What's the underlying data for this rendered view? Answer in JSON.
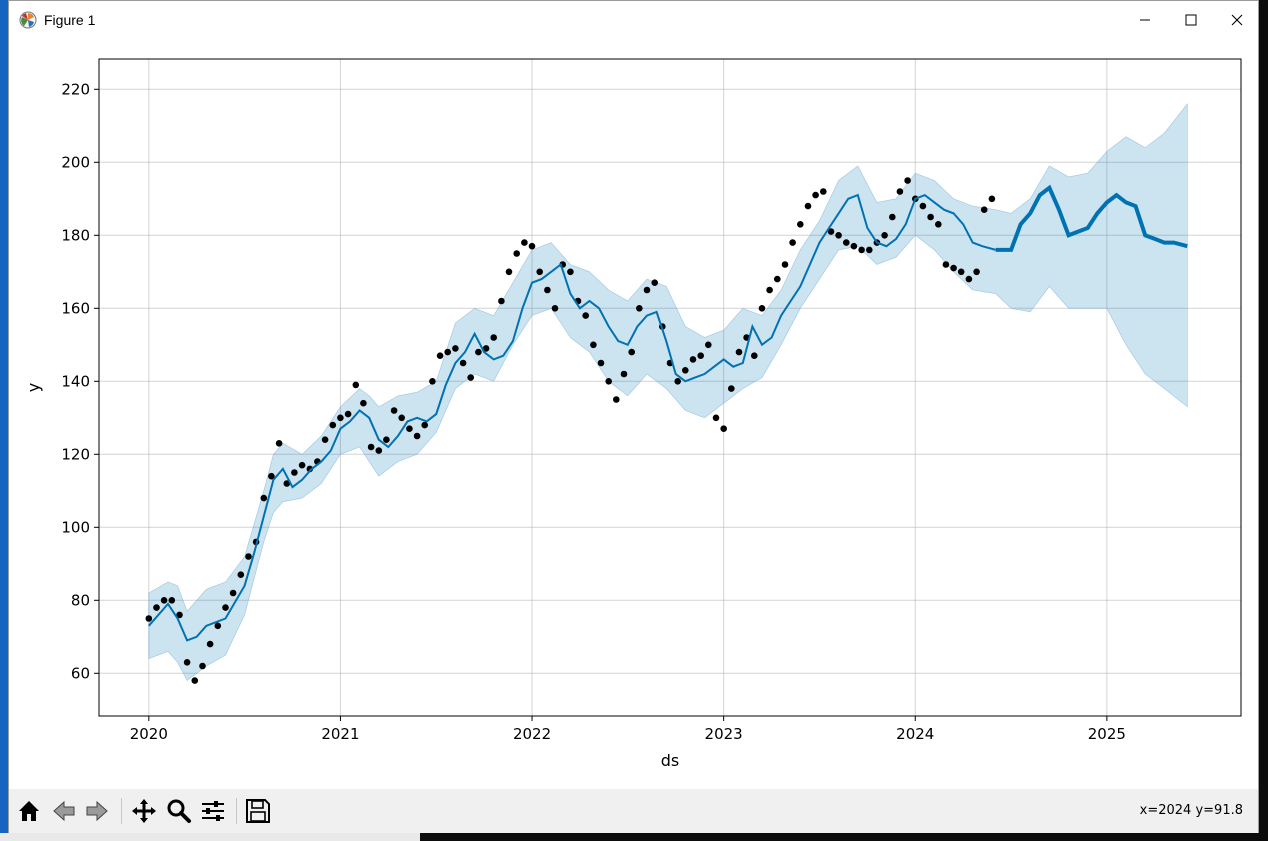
{
  "window": {
    "title": "Figure 1",
    "app_icon": "matplotlib-icon"
  },
  "toolbar": {
    "buttons": [
      {
        "icon": "home-icon",
        "name": "home-button"
      },
      {
        "icon": "back-arrow-icon",
        "name": "back-button"
      },
      {
        "icon": "forward-arrow-icon",
        "name": "forward-button"
      },
      {
        "icon": "pan-move-icon",
        "name": "pan-button"
      },
      {
        "icon": "zoom-magnifier-icon",
        "name": "zoom-button"
      },
      {
        "icon": "sliders-icon",
        "name": "configure-subplots-button"
      },
      {
        "icon": "save-floppy-icon",
        "name": "save-button"
      }
    ],
    "coords_text": "x=2024 y=91.8"
  },
  "chart_data": {
    "type": "line",
    "title": "",
    "xlabel": "ds",
    "ylabel": "y",
    "xlim": [
      2019.74,
      2025.7
    ],
    "ylim": [
      48.3,
      228.3
    ],
    "x_ticks": [
      "2020",
      "2021",
      "2022",
      "2023",
      "2024",
      "2025"
    ],
    "x_tick_values": [
      2020,
      2021,
      2022,
      2023,
      2024,
      2025
    ],
    "y_ticks": [
      "60",
      "80",
      "100",
      "120",
      "140",
      "160",
      "180",
      "200",
      "220"
    ],
    "y_tick_values": [
      60,
      80,
      100,
      120,
      140,
      160,
      180,
      200,
      220
    ],
    "grid": true,
    "colors": {
      "observed": "#000000",
      "forecast": "#0072b2",
      "interval": "#0072b2"
    },
    "history_end": 2024.42,
    "forecast_end": 2025.42,
    "series": [
      {
        "kind": "observed-points",
        "x": [
          2020.0,
          2020.04,
          2020.08,
          2020.12,
          2020.16,
          2020.2,
          2020.24,
          2020.28,
          2020.32,
          2020.36,
          2020.4,
          2020.44,
          2020.48,
          2020.52,
          2020.56,
          2020.6,
          2020.64,
          2020.68,
          2020.72,
          2020.76,
          2020.8,
          2020.84,
          2020.88,
          2020.92,
          2020.96,
          2021.0,
          2021.04,
          2021.08,
          2021.12,
          2021.16,
          2021.2,
          2021.24,
          2021.28,
          2021.32,
          2021.36,
          2021.4,
          2021.44,
          2021.48,
          2021.52,
          2021.56,
          2021.6,
          2021.64,
          2021.68,
          2021.72,
          2021.76,
          2021.8,
          2021.84,
          2021.88,
          2021.92,
          2021.96,
          2022.0,
          2022.04,
          2022.08,
          2022.12,
          2022.16,
          2022.2,
          2022.24,
          2022.28,
          2022.32,
          2022.36,
          2022.4,
          2022.44,
          2022.48,
          2022.52,
          2022.56,
          2022.6,
          2022.64,
          2022.68,
          2022.72,
          2022.76,
          2022.8,
          2022.84,
          2022.88,
          2022.92,
          2022.96,
          2023.0,
          2023.04,
          2023.08,
          2023.12,
          2023.16,
          2023.2,
          2023.24,
          2023.28,
          2023.32,
          2023.36,
          2023.4,
          2023.44,
          2023.48,
          2023.52,
          2023.56,
          2023.6,
          2023.64,
          2023.68,
          2023.72,
          2023.76,
          2023.8,
          2023.84,
          2023.88,
          2023.92,
          2023.96,
          2024.0,
          2024.04,
          2024.08,
          2024.12,
          2024.16,
          2024.2,
          2024.24,
          2024.28,
          2024.32,
          2024.36,
          2024.4
        ],
        "y": [
          75,
          78,
          80,
          80,
          76,
          63,
          58,
          62,
          68,
          73,
          78,
          82,
          87,
          92,
          96,
          108,
          114,
          123,
          112,
          115,
          117,
          116,
          118,
          124,
          128,
          130,
          131,
          139,
          134,
          122,
          121,
          124,
          132,
          130,
          127,
          125,
          128,
          140,
          147,
          148,
          149,
          145,
          141,
          148,
          149,
          152,
          162,
          170,
          175,
          178,
          177,
          170,
          165,
          160,
          172,
          170,
          162,
          158,
          150,
          145,
          140,
          135,
          142,
          148,
          160,
          165,
          167,
          155,
          145,
          140,
          143,
          146,
          147,
          150,
          130,
          127,
          138,
          148,
          152,
          147,
          160,
          165,
          168,
          172,
          178,
          183,
          188,
          191,
          192,
          181,
          180,
          178,
          177,
          176,
          176,
          178,
          180,
          185,
          192,
          195,
          190,
          188,
          185,
          183,
          172,
          171,
          170,
          168,
          170,
          187,
          190
        ]
      },
      {
        "kind": "forecast-line",
        "x": [
          2020.0,
          2020.05,
          2020.1,
          2020.15,
          2020.2,
          2020.25,
          2020.3,
          2020.4,
          2020.5,
          2020.55,
          2020.6,
          2020.65,
          2020.7,
          2020.75,
          2020.8,
          2020.85,
          2020.9,
          2020.95,
          2021.0,
          2021.05,
          2021.1,
          2021.15,
          2021.2,
          2021.25,
          2021.3,
          2021.35,
          2021.4,
          2021.45,
          2021.5,
          2021.55,
          2021.6,
          2021.65,
          2021.7,
          2021.75,
          2021.8,
          2021.85,
          2021.9,
          2021.95,
          2022.0,
          2022.05,
          2022.1,
          2022.15,
          2022.2,
          2022.25,
          2022.3,
          2022.35,
          2022.4,
          2022.45,
          2022.5,
          2022.55,
          2022.6,
          2022.65,
          2022.7,
          2022.75,
          2022.8,
          2022.85,
          2022.9,
          2022.95,
          2023.0,
          2023.05,
          2023.1,
          2023.15,
          2023.2,
          2023.25,
          2023.3,
          2023.35,
          2023.4,
          2023.45,
          2023.5,
          2023.55,
          2023.6,
          2023.65,
          2023.7,
          2023.75,
          2023.8,
          2023.85,
          2023.9,
          2023.95,
          2024.0,
          2024.05,
          2024.1,
          2024.15,
          2024.2,
          2024.25,
          2024.3,
          2024.35,
          2024.42,
          2024.5,
          2024.55,
          2024.6,
          2024.65,
          2024.7,
          2024.75,
          2024.8,
          2024.85,
          2024.9,
          2024.95,
          2025.0,
          2025.05,
          2025.1,
          2025.15,
          2025.2,
          2025.25,
          2025.3,
          2025.35,
          2025.42
        ],
        "y": [
          73,
          76,
          79,
          75,
          69,
          70,
          73,
          75,
          84,
          93,
          103,
          113,
          116,
          111,
          113,
          116,
          118,
          121,
          127,
          129,
          132,
          130,
          124,
          122,
          125,
          129,
          130,
          129,
          131,
          139,
          145,
          148,
          153,
          148,
          146,
          147,
          151,
          160,
          167,
          168,
          170,
          172,
          164,
          160,
          162,
          160,
          155,
          151,
          150,
          155,
          158,
          159,
          151,
          142,
          140,
          141,
          142,
          144,
          146,
          144,
          145,
          155,
          150,
          152,
          158,
          162,
          166,
          172,
          178,
          182,
          186,
          190,
          191,
          182,
          178,
          177,
          179,
          183,
          190,
          191,
          189,
          187,
          186,
          183,
          178,
          177,
          176,
          176,
          183,
          186,
          191,
          193,
          187,
          180,
          181,
          182,
          186,
          189,
          191,
          189,
          188,
          180,
          179,
          178,
          178,
          177
        ]
      },
      {
        "kind": "interval-upper",
        "x": [
          2020.0,
          2020.1,
          2020.15,
          2020.2,
          2020.3,
          2020.4,
          2020.5,
          2020.6,
          2020.65,
          2020.7,
          2020.8,
          2020.9,
          2021.0,
          2021.1,
          2021.15,
          2021.2,
          2021.3,
          2021.4,
          2021.5,
          2021.6,
          2021.7,
          2021.8,
          2021.9,
          2022.0,
          2022.1,
          2022.2,
          2022.3,
          2022.4,
          2022.5,
          2022.6,
          2022.7,
          2022.8,
          2022.9,
          2023.0,
          2023.1,
          2023.2,
          2023.3,
          2023.4,
          2023.5,
          2023.6,
          2023.7,
          2023.8,
          2023.9,
          2024.0,
          2024.1,
          2024.2,
          2024.3,
          2024.42,
          2024.5,
          2024.6,
          2024.7,
          2024.8,
          2024.9,
          2025.0,
          2025.1,
          2025.2,
          2025.3,
          2025.42
        ],
        "y": [
          82,
          85,
          84,
          77,
          83,
          85,
          92,
          110,
          120,
          123,
          120,
          125,
          133,
          138,
          136,
          133,
          136,
          137,
          140,
          156,
          160,
          158,
          167,
          176,
          178,
          172,
          170,
          165,
          162,
          168,
          166,
          155,
          152,
          154,
          160,
          158,
          165,
          176,
          184,
          195,
          199,
          189,
          190,
          197,
          195,
          190,
          188,
          187,
          186,
          190,
          199,
          196,
          197,
          203,
          207,
          204,
          208,
          216
        ]
      },
      {
        "kind": "interval-lower",
        "x": [
          2020.0,
          2020.1,
          2020.15,
          2020.2,
          2020.3,
          2020.4,
          2020.5,
          2020.6,
          2020.65,
          2020.7,
          2020.8,
          2020.9,
          2021.0,
          2021.1,
          2021.15,
          2021.2,
          2021.3,
          2021.4,
          2021.5,
          2021.6,
          2021.7,
          2021.8,
          2021.9,
          2022.0,
          2022.1,
          2022.2,
          2022.3,
          2022.4,
          2022.5,
          2022.6,
          2022.7,
          2022.8,
          2022.9,
          2023.0,
          2023.1,
          2023.2,
          2023.3,
          2023.4,
          2023.5,
          2023.6,
          2023.7,
          2023.8,
          2023.9,
          2024.0,
          2024.1,
          2024.2,
          2024.3,
          2024.42,
          2024.5,
          2024.6,
          2024.7,
          2024.8,
          2024.9,
          2025.0,
          2025.1,
          2025.2,
          2025.3,
          2025.42
        ],
        "y": [
          64,
          66,
          63,
          58,
          62,
          65,
          76,
          96,
          104,
          107,
          108,
          112,
          120,
          122,
          118,
          114,
          118,
          120,
          126,
          138,
          142,
          140,
          150,
          158,
          160,
          152,
          148,
          140,
          136,
          142,
          138,
          132,
          130,
          134,
          138,
          141,
          150,
          160,
          168,
          176,
          177,
          172,
          174,
          180,
          176,
          170,
          165,
          164,
          160,
          159,
          166,
          160,
          160,
          160,
          150,
          142,
          138,
          133
        ]
      }
    ]
  }
}
